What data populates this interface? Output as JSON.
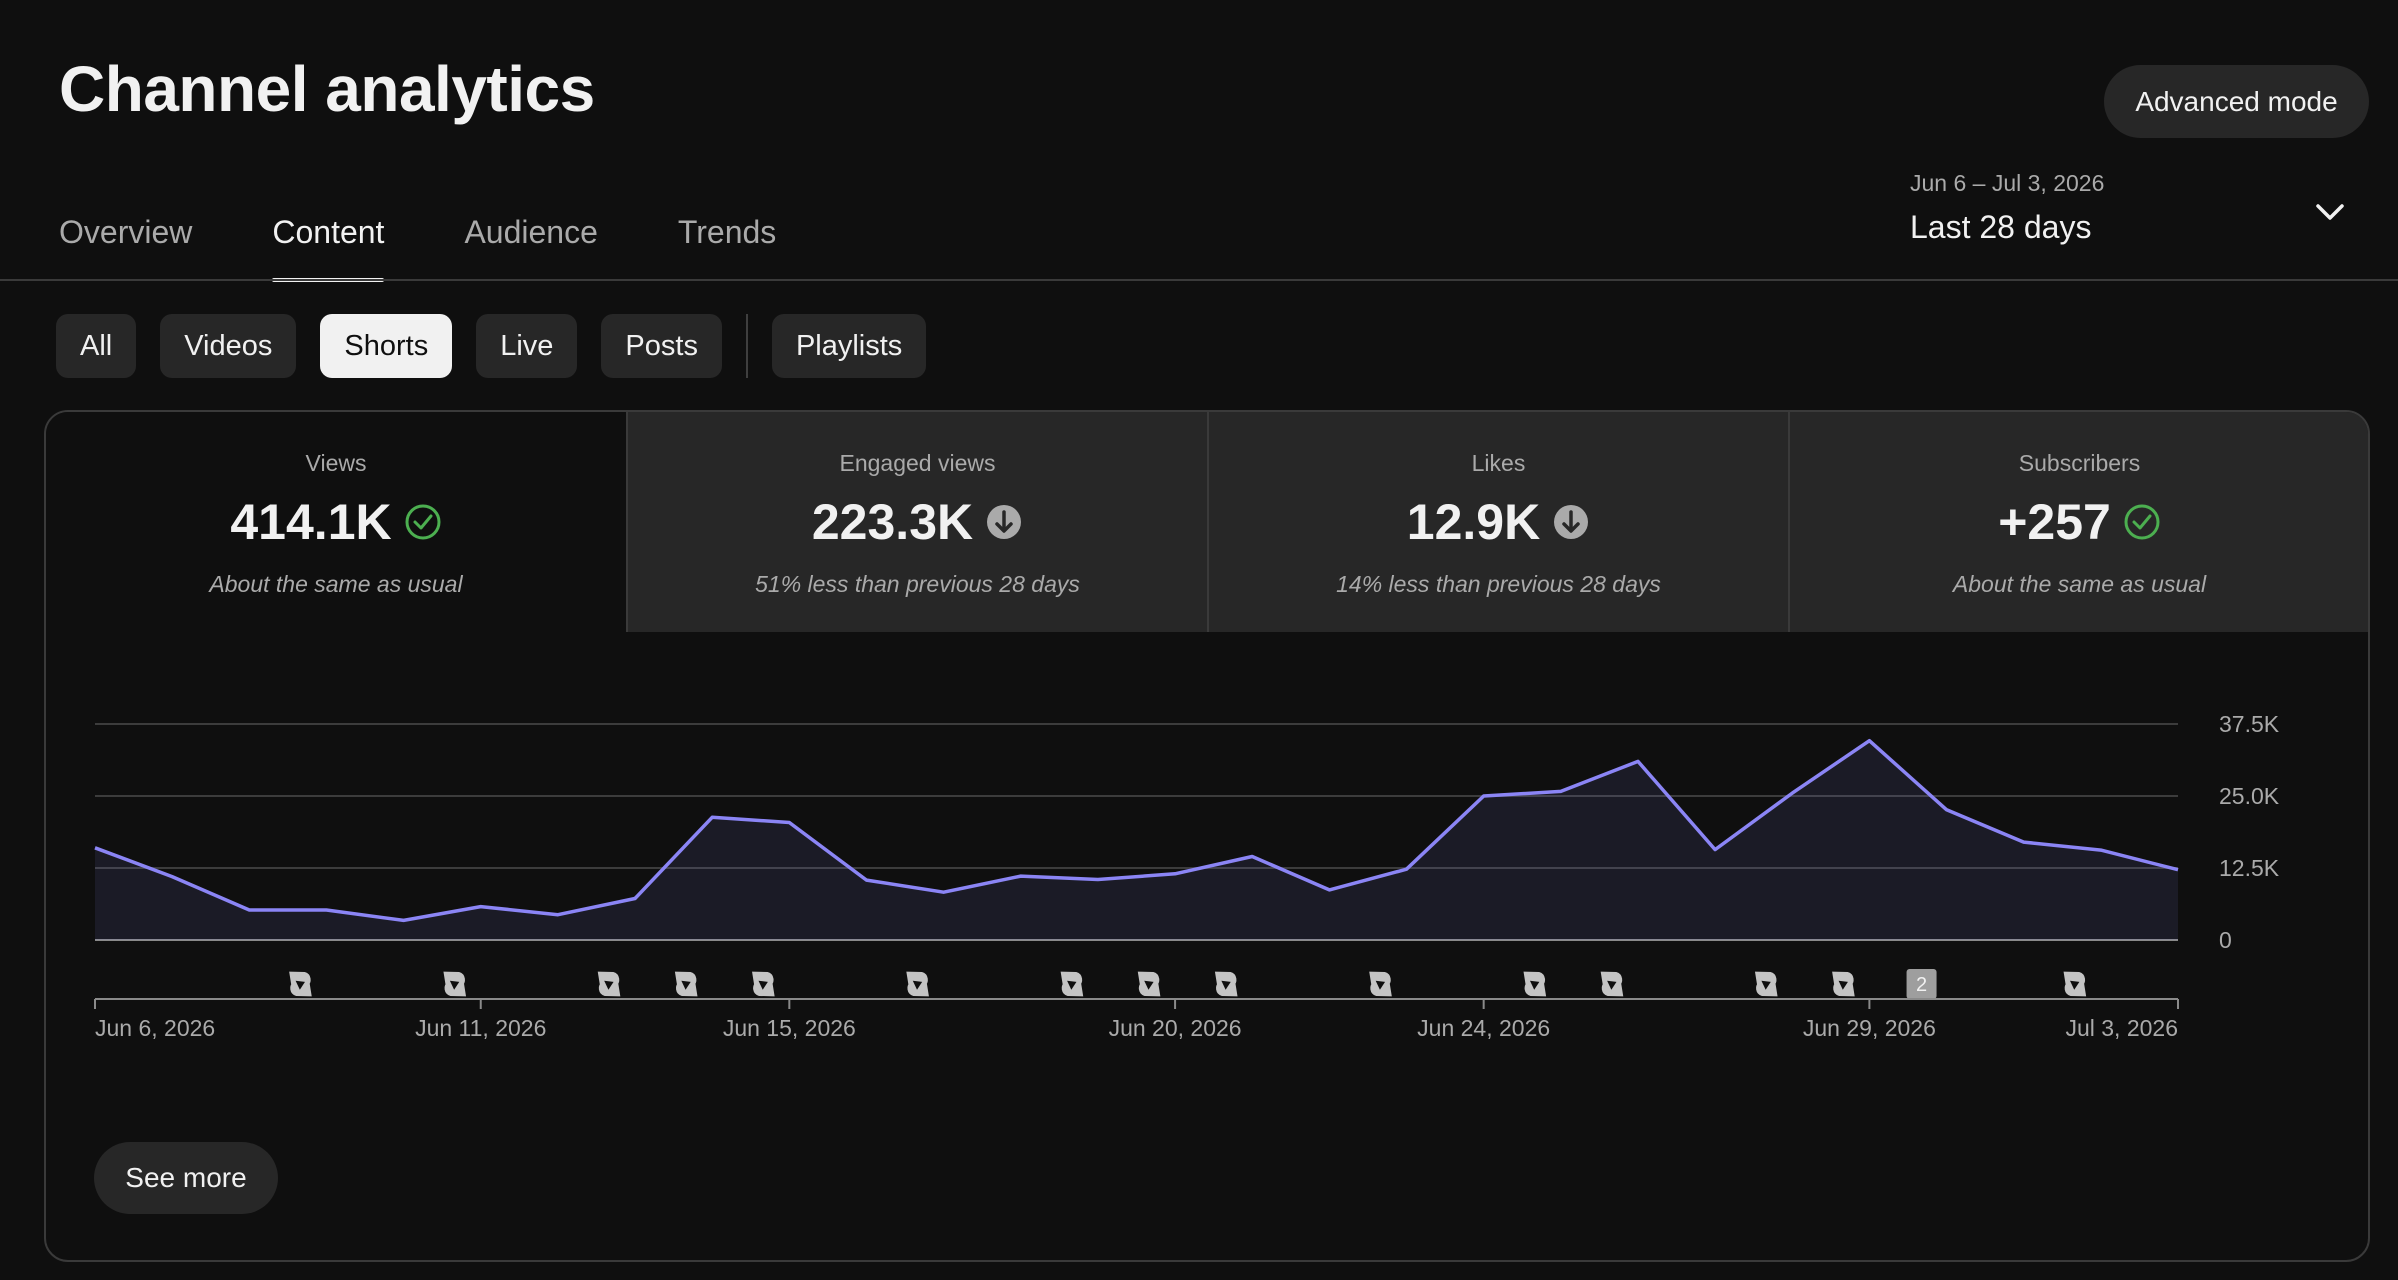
{
  "header": {
    "title": "Channel analytics",
    "advanced_mode_label": "Advanced mode"
  },
  "tabs": [
    {
      "label": "Overview"
    },
    {
      "label": "Content"
    },
    {
      "label": "Audience"
    },
    {
      "label": "Trends"
    }
  ],
  "active_tab": "Content",
  "date_range": {
    "dates": "Jun 6 – Jul 3, 2026",
    "label": "Last 28 days",
    "icon": "chevron-down-icon"
  },
  "chips": [
    {
      "label": "All"
    },
    {
      "label": "Videos"
    },
    {
      "label": "Shorts"
    },
    {
      "label": "Live"
    },
    {
      "label": "Posts"
    },
    {
      "label": "Playlists"
    }
  ],
  "selected_chip": "Shorts",
  "metrics": [
    {
      "label": "Views",
      "value": "414.1K",
      "icon": "check-circle-icon",
      "note": "About the same as usual"
    },
    {
      "label": "Engaged views",
      "value": "223.3K",
      "icon": "arrow-down-circle-icon",
      "note": "51% less than previous 28 days"
    },
    {
      "label": "Likes",
      "value": "12.9K",
      "icon": "arrow-down-circle-icon",
      "note": "14% less than previous 28 days"
    },
    {
      "label": "Subscribers",
      "value": "+257",
      "icon": "check-circle-icon",
      "note": "About the same as usual"
    }
  ],
  "colors": {
    "line": "#8b85f5",
    "positive": "#4caf50",
    "neutral_icon": "#aaaaaa"
  },
  "chart_data": {
    "type": "area",
    "x": [
      "Jun 6, 2026",
      "Jun 7, 2026",
      "Jun 8, 2026",
      "Jun 9, 2026",
      "Jun 10, 2026",
      "Jun 11, 2026",
      "Jun 12, 2026",
      "Jun 13, 2026",
      "Jun 14, 2026",
      "Jun 15, 2026",
      "Jun 16, 2026",
      "Jun 17, 2026",
      "Jun 18, 2026",
      "Jun 19, 2026",
      "Jun 20, 2026",
      "Jun 21, 2026",
      "Jun 22, 2026",
      "Jun 23, 2026",
      "Jun 24, 2026",
      "Jun 25, 2026",
      "Jun 26, 2026",
      "Jun 27, 2026",
      "Jun 28, 2026",
      "Jun 29, 2026",
      "Jun 30, 2026",
      "Jul 1, 2026",
      "Jul 2, 2026",
      "Jul 3, 2026"
    ],
    "values": [
      16000,
      11000,
      5200,
      5200,
      3400,
      5800,
      4400,
      7200,
      21300,
      20400,
      10400,
      8300,
      11100,
      10500,
      11500,
      14500,
      8700,
      12300,
      25000,
      25800,
      31000,
      15700,
      25500,
      34600,
      22600,
      17000,
      15600,
      12200
    ],
    "ylim": [
      0,
      37500
    ],
    "yticks": [
      {
        "value": 37500,
        "label": "37.5K"
      },
      {
        "value": 25000,
        "label": "25.0K"
      },
      {
        "value": 12500,
        "label": "12.5K"
      },
      {
        "value": 0,
        "label": "0"
      }
    ],
    "xtick_labels": [
      {
        "index": 0,
        "label": "Jun 6, 2026"
      },
      {
        "index": 5,
        "label": "Jun 11, 2026"
      },
      {
        "index": 9,
        "label": "Jun 15, 2026"
      },
      {
        "index": 14,
        "label": "Jun 20, 2026"
      },
      {
        "index": 18,
        "label": "Jun 24, 2026"
      },
      {
        "index": 23,
        "label": "Jun 29, 2026"
      },
      {
        "index": 27,
        "label": "Jul 3, 2026"
      }
    ],
    "upload_markers": [
      {
        "index": 3,
        "count": 1
      },
      {
        "index": 5,
        "count": 1
      },
      {
        "index": 7,
        "count": 1
      },
      {
        "index": 8,
        "count": 1
      },
      {
        "index": 9,
        "count": 1
      },
      {
        "index": 11,
        "count": 1
      },
      {
        "index": 13,
        "count": 1
      },
      {
        "index": 14,
        "count": 1
      },
      {
        "index": 15,
        "count": 1
      },
      {
        "index": 17,
        "count": 1
      },
      {
        "index": 19,
        "count": 1
      },
      {
        "index": 20,
        "count": 1
      },
      {
        "index": 22,
        "count": 1
      },
      {
        "index": 23,
        "count": 1
      },
      {
        "index": 24,
        "count": 2
      },
      {
        "index": 26,
        "count": 1
      }
    ],
    "grid": true,
    "legend": "none"
  },
  "see_more_label": "See more"
}
